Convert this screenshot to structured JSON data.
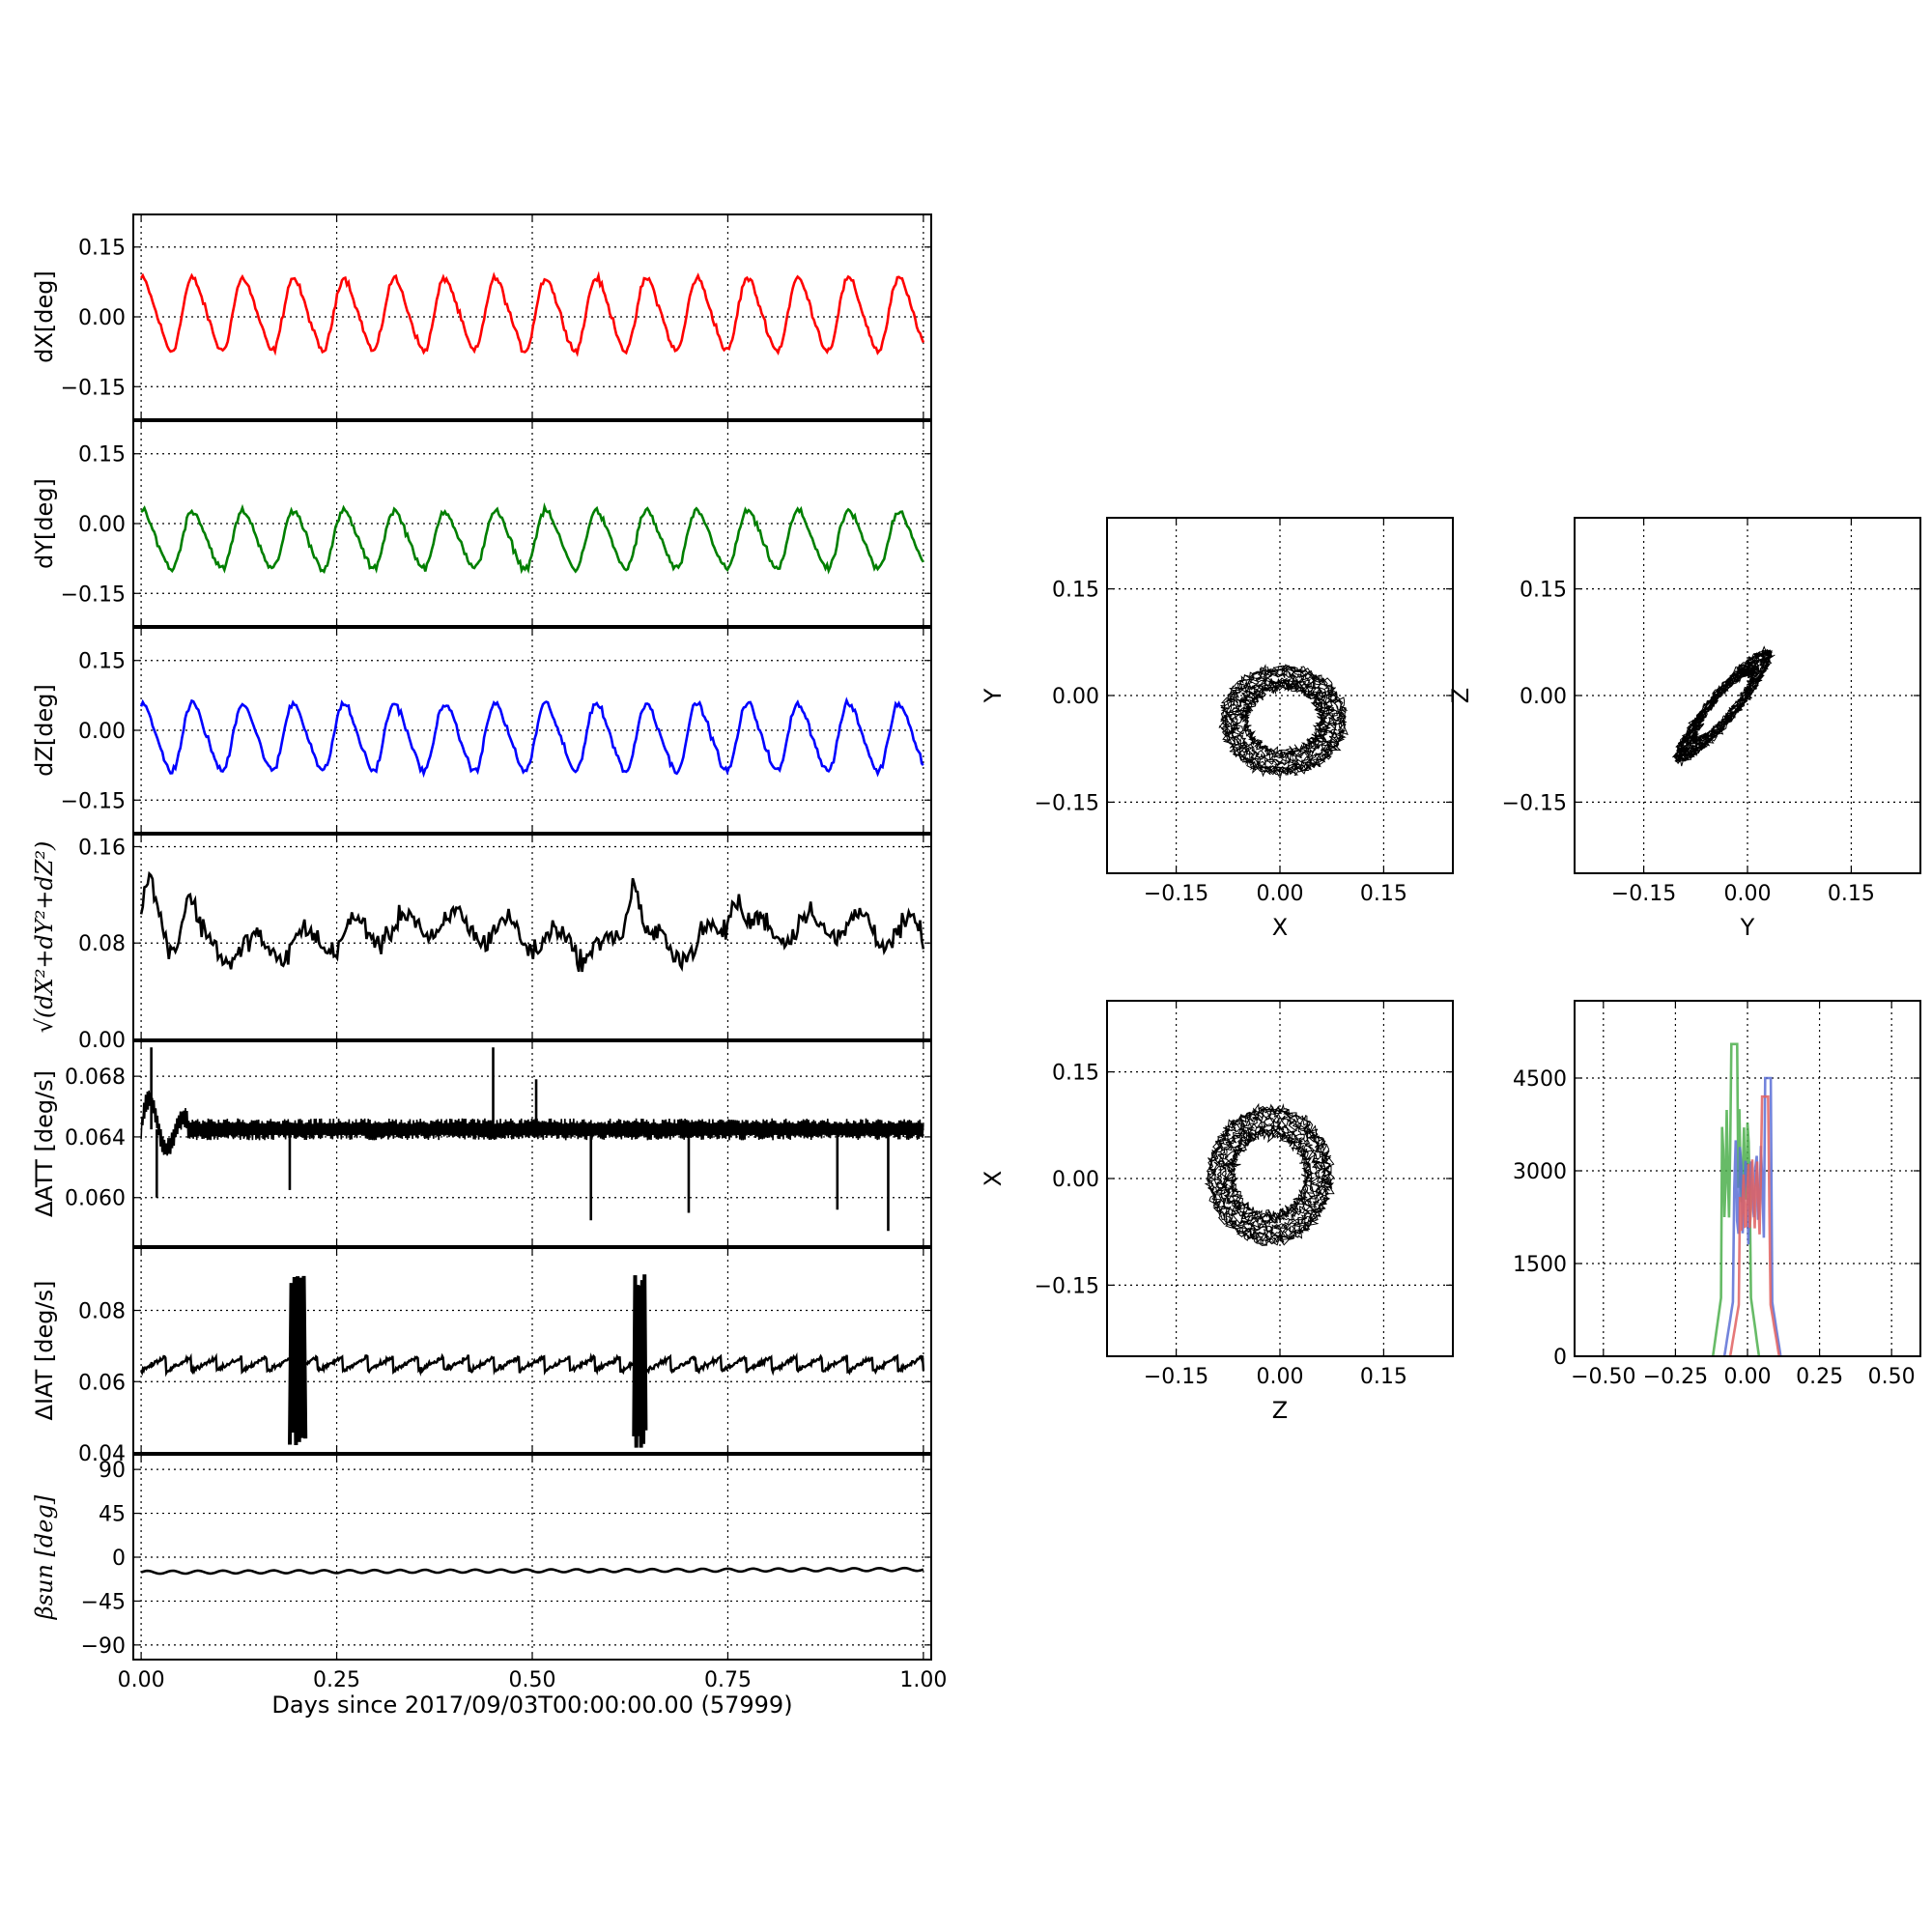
{
  "figure": {
    "xlabel": "Days since 2017/09/03T00:00:00.00 (57999)"
  },
  "chart_data": [
    {
      "type": "line",
      "id": "dx",
      "ylabel": "dX[deg]",
      "xlim": [
        -0.01,
        1.01
      ],
      "ylim": [
        -0.22,
        0.22
      ],
      "yticks": [
        0.15,
        0.0,
        -0.15
      ],
      "ytick_labels": [
        "0.15",
        "0.00",
        "−0.15"
      ],
      "xticks": [
        0,
        0.25,
        0.5,
        0.75,
        1.0
      ],
      "grid": true,
      "series": [
        {
          "color": "#ff0000",
          "x_range": [
            0,
            1
          ],
          "n_points": 480,
          "mean": 0.005,
          "amplitude": 0.075,
          "cycles": 15.5,
          "noise": 0.008
        }
      ]
    },
    {
      "type": "line",
      "id": "dy",
      "ylabel": "dY[deg]",
      "xlim": [
        -0.01,
        1.01
      ],
      "ylim": [
        -0.22,
        0.22
      ],
      "yticks": [
        0.15,
        0.0,
        -0.15
      ],
      "ytick_labels": [
        "0.15",
        "0.00",
        "−0.15"
      ],
      "xticks": [
        0,
        0.25,
        0.5,
        0.75,
        1.0
      ],
      "grid": true,
      "series": [
        {
          "color": "#007f00",
          "x_range": [
            0,
            1
          ],
          "n_points": 480,
          "mean": -0.035,
          "amplitude": 0.06,
          "cycles": 15.5,
          "noise": 0.008
        }
      ]
    },
    {
      "type": "line",
      "id": "dz",
      "ylabel": "dZ[deg]",
      "xlim": [
        -0.01,
        1.01
      ],
      "ylim": [
        -0.22,
        0.22
      ],
      "yticks": [
        0.15,
        0.0,
        -0.15
      ],
      "ytick_labels": [
        "0.15",
        "0.00",
        "−0.15"
      ],
      "xticks": [
        0,
        0.25,
        0.5,
        0.75,
        1.0
      ],
      "grid": true,
      "series": [
        {
          "color": "#0000ff",
          "x_range": [
            0,
            1
          ],
          "n_points": 480,
          "mean": -0.015,
          "amplitude": 0.07,
          "cycles": 15.5,
          "noise": 0.008
        }
      ]
    },
    {
      "type": "line",
      "id": "dr",
      "ylabel": "√(dX²+dY²+dZ²)",
      "xlim": [
        -0.01,
        1.01
      ],
      "ylim": [
        0.0,
        0.17
      ],
      "yticks": [
        0.16,
        0.08,
        0.0
      ],
      "ytick_labels": [
        "0.16",
        "0.08",
        "0.00"
      ],
      "xticks": [
        0,
        0.25,
        0.5,
        0.75,
        1.0
      ],
      "grid": true,
      "series": [
        {
          "color": "#000000",
          "x_range": [
            0,
            1
          ],
          "n_points": 480,
          "mean": 0.085,
          "amplitude": 0.012,
          "cycles": 15.5,
          "noise": 0.01,
          "events": [
            {
              "x": 0.63,
              "y": 0.15
            },
            {
              "x": 0.76,
              "y": 0.125
            },
            {
              "x": 0.06,
              "y": 0.13
            },
            {
              "x": 0.01,
              "y": 0.125
            }
          ]
        }
      ]
    },
    {
      "type": "line",
      "id": "datt",
      "ylabel": "ΔATT [deg/s]",
      "xlim": [
        -0.01,
        1.01
      ],
      "ylim": [
        0.0568,
        0.0703
      ],
      "yticks": [
        0.068,
        0.064,
        0.06
      ],
      "ytick_labels": [
        "0.068",
        "0.064",
        "0.060"
      ],
      "xticks": [
        0,
        0.25,
        0.5,
        0.75,
        1.0
      ],
      "grid": true,
      "series": [
        {
          "color": "#000000",
          "x_range": [
            0,
            1
          ],
          "n_points": 900,
          "mean": 0.0645,
          "band": 0.0006,
          "spikes": [
            {
              "x": 0.013,
              "y": 0.0699
            },
            {
              "x": 0.02,
              "y": 0.06
            },
            {
              "x": 0.19,
              "y": 0.0605
            },
            {
              "x": 0.45,
              "y": 0.0699
            },
            {
              "x": 0.505,
              "y": 0.0678
            },
            {
              "x": 0.575,
              "y": 0.0585
            },
            {
              "x": 0.7,
              "y": 0.059
            },
            {
              "x": 0.89,
              "y": 0.0592
            },
            {
              "x": 0.955,
              "y": 0.0578
            }
          ]
        }
      ]
    },
    {
      "type": "line",
      "id": "diat",
      "ylabel": "ΔIAT [deg/s]",
      "xlim": [
        -0.01,
        1.01
      ],
      "ylim": [
        0.04,
        0.0975
      ],
      "yticks": [
        0.08,
        0.06,
        0.04
      ],
      "ytick_labels": [
        "0.08",
        "0.06",
        "0.04"
      ],
      "xticks": [
        0,
        0.25,
        0.5,
        0.75,
        1.0
      ],
      "grid": true,
      "series": [
        {
          "color": "#000000",
          "x_range": [
            0,
            1
          ],
          "n_points": 900,
          "mean": 0.065,
          "sawtooth": 0.004,
          "cycles": 31,
          "bursts": [
            {
              "x0": 0.19,
              "x1": 0.21,
              "ymin": 0.041,
              "ymax": 0.091
            },
            {
              "x0": 0.63,
              "x1": 0.645,
              "ymin": 0.041,
              "ymax": 0.092
            }
          ]
        }
      ]
    },
    {
      "type": "line",
      "id": "beta",
      "ylabel": "βsun [deg]",
      "xlim": [
        -0.01,
        1.01
      ],
      "ylim": [
        -105,
        105
      ],
      "yticks": [
        90,
        45,
        0,
        -45,
        -90
      ],
      "ytick_labels": [
        "90",
        "45",
        "0",
        "−45",
        "−90"
      ],
      "xticks": [
        0,
        0.25,
        0.5,
        0.75,
        1.0
      ],
      "xtick_labels": [
        "0.00",
        "0.25",
        "0.50",
        "0.75",
        "1.00"
      ],
      "grid": true,
      "series": [
        {
          "color": "#000000",
          "x_range": [
            0,
            1
          ],
          "n_points": 500,
          "start": -15.5,
          "end": -12.5,
          "amplitude": 1.5,
          "cycles": 31
        }
      ]
    },
    {
      "type": "scatter",
      "id": "xy",
      "xlabel": "X",
      "ylabel": "Y",
      "xlim": [
        -0.25,
        0.25
      ],
      "ylim": [
        -0.25,
        0.25
      ],
      "ticks": [
        -0.15,
        0.0,
        0.15
      ],
      "tick_labels": [
        "−0.15",
        "0.00",
        "0.15"
      ],
      "grid": true,
      "trace": {
        "center": [
          0.005,
          -0.035
        ],
        "rx": 0.07,
        "ry": 0.06,
        "phase": 0,
        "tilt": 0,
        "jitter": 0.012
      }
    },
    {
      "type": "scatter",
      "id": "yz",
      "xlabel": "Y",
      "ylabel": "Z",
      "xlim": [
        -0.25,
        0.25
      ],
      "ylim": [
        -0.25,
        0.25
      ],
      "ticks": [
        -0.15,
        0.0,
        0.15
      ],
      "tick_labels": [
        "−0.15",
        "0.00",
        "0.15"
      ],
      "grid": true,
      "trace": {
        "center": [
          -0.035,
          -0.015
        ],
        "rx": 0.06,
        "ry": 0.07,
        "phase": 0.3,
        "tilt": 1,
        "jitter": 0.01
      }
    },
    {
      "type": "scatter",
      "id": "zx",
      "xlabel": "Z",
      "ylabel": "X",
      "xlim": [
        -0.25,
        0.25
      ],
      "ylim": [
        -0.25,
        0.25
      ],
      "ticks": [
        -0.15,
        0.0,
        0.15
      ],
      "tick_labels": [
        "−0.15",
        "0.00",
        "0.15"
      ],
      "grid": true,
      "trace": {
        "center": [
          -0.015,
          0.005
        ],
        "rx": 0.07,
        "ry": 0.075,
        "phase": 1.9,
        "tilt": 0,
        "jitter": 0.012
      }
    },
    {
      "type": "histogram",
      "id": "hist",
      "xlim": [
        -0.6,
        0.6
      ],
      "ylim": [
        0,
        5750
      ],
      "xticks": [
        -0.5,
        -0.25,
        0.0,
        0.25,
        0.5
      ],
      "xtick_labels": [
        "−0.50",
        "−0.25",
        "0.00",
        "0.25",
        "0.50"
      ],
      "yticks": [
        0,
        1500,
        3000,
        4500
      ],
      "ytick_labels": [
        "0",
        "1500",
        "3000",
        "4500"
      ],
      "grid": true,
      "series": [
        {
          "color": "#4caf4c",
          "range": [
            -0.09,
            0.01
          ],
          "peak": 5050,
          "edge_x": -0.045
        },
        {
          "color": "#5a6fd6",
          "range": [
            -0.05,
            0.085
          ],
          "peak": 4500,
          "edge_x": 0.07
        },
        {
          "color": "#e06060",
          "range": [
            -0.03,
            0.08
          ],
          "peak": 4200,
          "edge_x": 0.06
        }
      ]
    }
  ]
}
